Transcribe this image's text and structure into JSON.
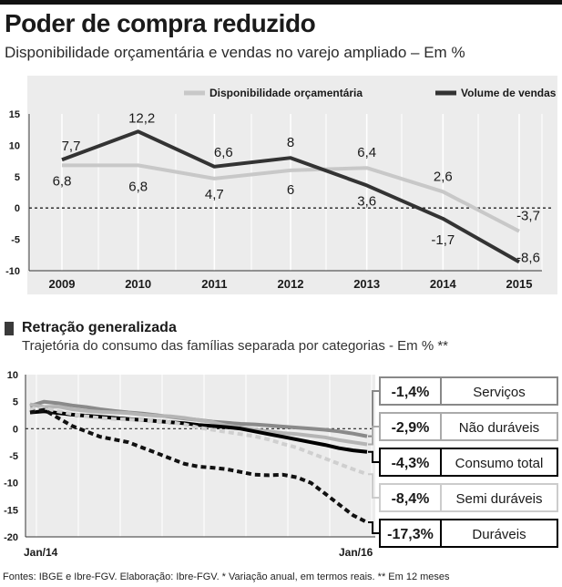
{
  "header": {
    "title": "Poder de compra reduzido",
    "subtitle": "Disponibilidade orçamentária e vendas no varejo ampliado – Em %"
  },
  "section2": {
    "title": "Retração generalizada",
    "subtitle": "Trajetória do consumo das famílias separada por categorias - Em % **"
  },
  "footer": {
    "text": "Fontes: IBGE e Ibre-FGV. Elaboração: Ibre-FGV. * Variação anual, em termos reais. ** Em 12 meses"
  },
  "colors": {
    "dark": "#333333",
    "light": "#c8c8c8",
    "mid": "#8a8a8a",
    "panel": "#ececec"
  },
  "chart_data": [
    {
      "type": "line",
      "title": "Poder de compra reduzido",
      "x": [
        "2009",
        "2010",
        "2011",
        "2012",
        "2013",
        "2014",
        "2015"
      ],
      "ylim": [
        -10,
        15
      ],
      "yticks": [
        "15",
        "10",
        "5",
        "0",
        "-5",
        "-10"
      ],
      "series": [
        {
          "name": "Disponibilidade orçamentária",
          "values": [
            6.8,
            6.8,
            4.7,
            6,
            6.4,
            2.6,
            -3.7
          ],
          "labels": [
            "6,8",
            "6,8",
            "4,7",
            "6",
            "6,4",
            "2,6",
            "-3,7"
          ]
        },
        {
          "name": "Volume de vendas",
          "values": [
            7.7,
            12.2,
            6.6,
            8,
            3.6,
            -1.7,
            -8.6
          ],
          "labels": [
            "7,7",
            "12,2",
            "6,6",
            "8",
            "3,6",
            "-1,7",
            "-8,6"
          ]
        }
      ]
    },
    {
      "type": "line",
      "title": "Retração generalizada",
      "x_start": "Jan/14",
      "x_end": "Jan/16",
      "ylim": [
        -20,
        10
      ],
      "yticks": [
        "10",
        "5",
        "0",
        "-5",
        "-10",
        "-15",
        "-20"
      ],
      "series": [
        {
          "name": "Serviços",
          "label": "-1,4%",
          "end_value": -1.4,
          "values": [
            4.2,
            5.0,
            4.7,
            4.3,
            4.0,
            3.6,
            3.3,
            3.0,
            2.8,
            2.5,
            2.2,
            1.9,
            1.6,
            1.3,
            1.1,
            0.9,
            0.8,
            0.6,
            0.4,
            0.2,
            0.0,
            -0.2,
            -0.5,
            -0.9,
            -1.4
          ]
        },
        {
          "name": "Não duráveis",
          "label": "-2,9%",
          "end_value": -2.9,
          "values": [
            4.5,
            4.0,
            4.1,
            3.6,
            3.3,
            3.1,
            3.0,
            2.9,
            2.6,
            2.4,
            2.3,
            2.0,
            1.6,
            1.2,
            0.6,
            0.2,
            -0.2,
            -0.5,
            -0.8,
            -1.0,
            -1.3,
            -1.6,
            -2.1,
            -2.5,
            -2.9
          ]
        },
        {
          "name": "Consumo total",
          "label": "-4,3%",
          "end_value": -4.3,
          "values": [
            3.0,
            3.2,
            2.9,
            2.6,
            2.4,
            2.2,
            2.0,
            1.8,
            1.6,
            1.4,
            1.2,
            1.0,
            0.7,
            0.5,
            0.3,
            0.0,
            -0.5,
            -1.0,
            -1.5,
            -2.0,
            -2.5,
            -3.0,
            -3.6,
            -4.0,
            -4.3
          ]
        },
        {
          "name": "Semi duráveis",
          "label": "-8,4%",
          "end_value": -8.4,
          "values": [
            3.5,
            3.8,
            3.2,
            2.7,
            2.3,
            2.0,
            1.8,
            1.7,
            1.6,
            1.4,
            1.2,
            0.8,
            0.2,
            -0.2,
            -0.6,
            -1.0,
            -1.4,
            -2.0,
            -2.8,
            -3.5,
            -4.5,
            -5.5,
            -6.5,
            -7.5,
            -8.4
          ]
        },
        {
          "name": "Duráveis",
          "label": "-17,3%",
          "end_value": -17.3,
          "values": [
            3.0,
            3.5,
            2.0,
            0.5,
            -0.5,
            -1.5,
            -2.0,
            -2.5,
            -3.5,
            -4.5,
            -5.5,
            -6.5,
            -7.0,
            -7.2,
            -7.5,
            -8.0,
            -8.5,
            -8.6,
            -8.5,
            -9.0,
            -10.0,
            -12.0,
            -14.0,
            -16.0,
            -17.3
          ]
        }
      ]
    }
  ]
}
